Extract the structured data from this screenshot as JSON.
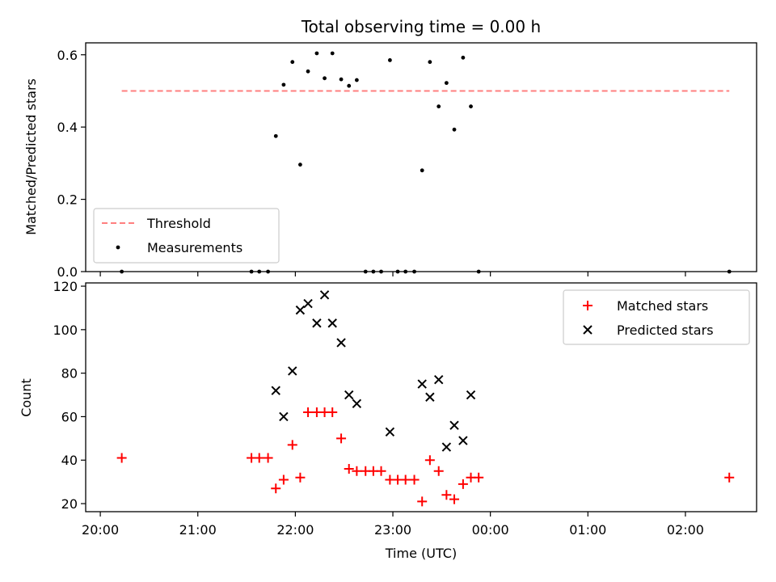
{
  "chart_data": [
    {
      "type": "scatter",
      "title": "Total observing time = 0.00 h",
      "xlabel": "",
      "ylabel": "Matched/Predicted stars",
      "ylim": [
        0,
        0.633
      ],
      "yticks": [
        "0.0",
        "0.2",
        "0.4",
        "0.6"
      ],
      "xlim_hours": [
        19.85,
        26.73
      ],
      "legend_position": "lower-left",
      "threshold": {
        "name": "Threshold",
        "value": 0.5,
        "x_range": [
          20.22,
          26.45
        ],
        "color": "#ff7f7f"
      },
      "series": [
        {
          "name": "Measurements",
          "color": "#000000",
          "x": [
            20.22,
            21.55,
            21.63,
            21.72,
            21.8,
            21.88,
            21.97,
            22.05,
            22.13,
            22.22,
            22.3,
            22.38,
            22.47,
            22.55,
            22.63,
            22.72,
            22.8,
            22.88,
            22.97,
            23.05,
            23.13,
            23.22,
            23.3,
            23.38,
            23.47,
            23.55,
            23.63,
            23.72,
            23.8,
            23.88
          ],
          "y": [
            0.0,
            0.0,
            0.0,
            0.0,
            0.375,
            0.517,
            0.58,
            0.296,
            0.554,
            0.604,
            0.535,
            0.604,
            0.532,
            0.514,
            0.53,
            0.0,
            0.0,
            0.0,
            0.585,
            0.0,
            0.0,
            0.0,
            0.28,
            0.58,
            0.457,
            0.522,
            0.393,
            0.592,
            0.457,
            0.0
          ]
        }
      ],
      "extra_points": [
        {
          "x": 26.45,
          "y": 0.0
        }
      ]
    },
    {
      "type": "scatter",
      "title": "",
      "xlabel": "Time (UTC)",
      "ylabel": "Count",
      "ylim": [
        16.3,
        121.5
      ],
      "yticks": [
        "20",
        "40",
        "60",
        "80",
        "100",
        "120"
      ],
      "xticks": [
        "20:00",
        "21:00",
        "22:00",
        "23:00",
        "00:00",
        "01:00",
        "02:00"
      ],
      "xlim_hours": [
        19.85,
        26.73
      ],
      "legend_position": "top-right",
      "series": [
        {
          "name": "Matched stars",
          "marker": "plus",
          "color": "#ff0000",
          "x": [
            20.22,
            21.55,
            21.63,
            21.72,
            21.8,
            21.88,
            21.97,
            22.05,
            22.13,
            22.22,
            22.3,
            22.38,
            22.47,
            22.55,
            22.63,
            22.72,
            22.8,
            22.88,
            22.97,
            23.05,
            23.13,
            23.22,
            23.3,
            23.38,
            23.47,
            23.55,
            23.63,
            23.72,
            23.8,
            23.88,
            26.45
          ],
          "y": [
            41,
            41,
            41,
            41,
            27,
            31,
            47,
            32,
            62,
            62,
            62,
            62,
            50,
            36,
            35,
            35,
            35,
            35,
            31,
            31,
            31,
            31,
            21,
            40,
            35,
            24,
            22,
            29,
            32,
            32,
            32
          ]
        },
        {
          "name": "Predicted stars",
          "marker": "x",
          "color": "#000000",
          "x": [
            21.8,
            21.88,
            21.97,
            22.05,
            22.13,
            22.22,
            22.3,
            22.38,
            22.47,
            22.55,
            22.63,
            22.97,
            23.3,
            23.38,
            23.47,
            23.55,
            23.63,
            23.72,
            23.8
          ],
          "y": [
            72,
            60,
            81,
            109,
            112,
            103,
            116,
            103,
            94,
            70,
            66,
            53,
            75,
            69,
            77,
            46,
            56,
            49,
            70
          ]
        }
      ]
    }
  ]
}
